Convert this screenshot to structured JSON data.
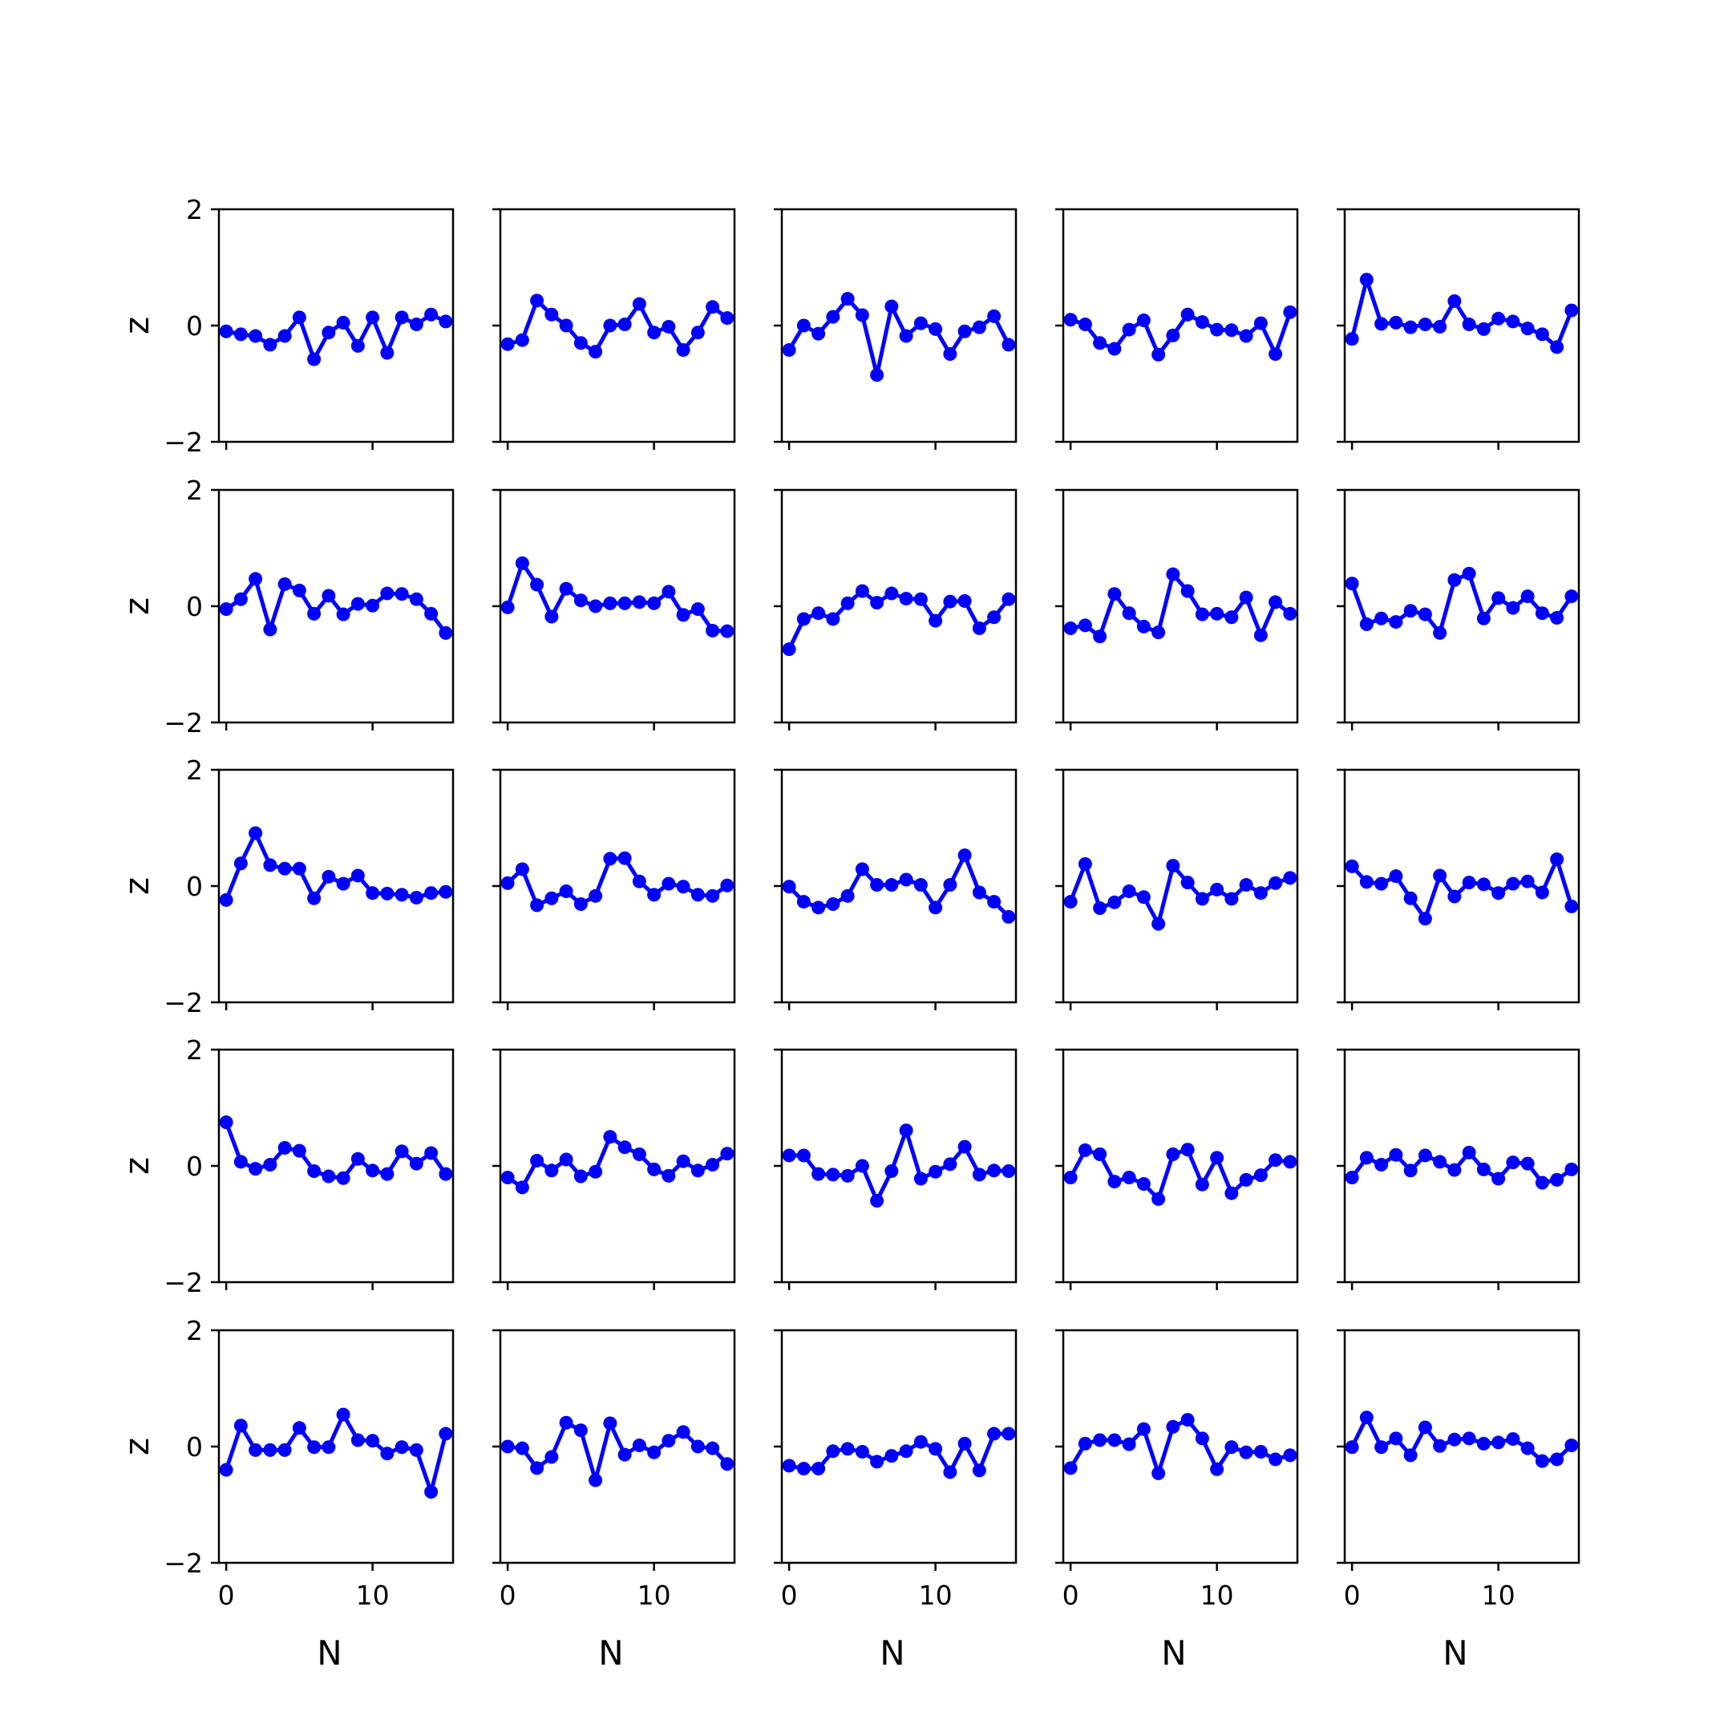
{
  "chart_data": {
    "type": "line",
    "layout": {
      "rows": 5,
      "cols": 5
    },
    "x": [
      0,
      1,
      2,
      3,
      4,
      5,
      6,
      7,
      8,
      9,
      10,
      11,
      12,
      13,
      14,
      15
    ],
    "xlim": [
      -0.5,
      15.5
    ],
    "ylim": [
      -2,
      2
    ],
    "xticks": [
      0,
      10
    ],
    "yticks": [
      -2,
      0,
      2
    ],
    "xlabel": "N",
    "ylabel": "z",
    "line_color": "#0000ff",
    "marker": "circle",
    "panels": [
      [
        -0.1,
        -0.15,
        -0.18,
        -0.33,
        -0.18,
        0.14,
        -0.58,
        -0.12,
        0.05,
        -0.35,
        0.14,
        -0.47,
        0.14,
        0.02,
        0.19,
        0.07
      ],
      [
        -0.32,
        -0.25,
        0.43,
        0.19,
        0.0,
        -0.3,
        -0.45,
        0.0,
        0.02,
        0.37,
        -0.12,
        -0.02,
        -0.42,
        -0.12,
        0.32,
        0.13
      ],
      [
        -0.42,
        0.0,
        -0.14,
        0.15,
        0.46,
        0.18,
        -0.85,
        0.33,
        -0.18,
        0.04,
        -0.06,
        -0.49,
        -0.1,
        -0.03,
        0.16,
        -0.33
      ],
      [
        0.1,
        0.02,
        -0.3,
        -0.4,
        -0.07,
        0.09,
        -0.5,
        -0.17,
        0.19,
        0.06,
        -0.07,
        -0.08,
        -0.18,
        0.04,
        -0.49,
        0.23
      ],
      [
        -0.23,
        0.79,
        0.03,
        0.05,
        -0.03,
        0.02,
        -0.02,
        0.42,
        0.02,
        -0.06,
        0.12,
        0.07,
        -0.05,
        -0.15,
        -0.37,
        0.26
      ],
      [
        -0.05,
        0.12,
        0.47,
        -0.4,
        0.38,
        0.27,
        -0.13,
        0.18,
        -0.14,
        0.04,
        0.01,
        0.22,
        0.21,
        0.12,
        -0.13,
        -0.46
      ],
      [
        -0.02,
        0.74,
        0.37,
        -0.18,
        0.3,
        0.1,
        0.0,
        0.05,
        0.05,
        0.07,
        0.05,
        0.25,
        -0.15,
        -0.05,
        -0.42,
        -0.43
      ],
      [
        -0.74,
        -0.22,
        -0.12,
        -0.22,
        0.05,
        0.26,
        0.06,
        0.22,
        0.13,
        0.12,
        -0.25,
        0.08,
        0.09,
        -0.38,
        -0.19,
        0.12
      ],
      [
        -0.38,
        -0.33,
        -0.52,
        0.21,
        -0.12,
        -0.35,
        -0.45,
        0.55,
        0.26,
        -0.14,
        -0.13,
        -0.19,
        0.15,
        -0.5,
        0.07,
        -0.13
      ],
      [
        0.39,
        -0.31,
        -0.21,
        -0.27,
        -0.08,
        -0.14,
        -0.46,
        0.45,
        0.56,
        -0.21,
        0.14,
        -0.03,
        0.17,
        -0.12,
        -0.2,
        0.17
      ],
      [
        -0.24,
        0.39,
        0.91,
        0.36,
        0.3,
        0.3,
        -0.21,
        0.16,
        0.04,
        0.18,
        -0.12,
        -0.13,
        -0.15,
        -0.2,
        -0.12,
        -0.1
      ],
      [
        0.05,
        0.29,
        -0.33,
        -0.21,
        -0.09,
        -0.31,
        -0.17,
        0.47,
        0.48,
        0.08,
        -0.15,
        0.04,
        -0.01,
        -0.15,
        -0.17,
        0.01
      ],
      [
        -0.01,
        -0.27,
        -0.37,
        -0.31,
        -0.17,
        0.29,
        0.02,
        0.02,
        0.11,
        0.02,
        -0.37,
        0.02,
        0.53,
        -0.11,
        -0.27,
        -0.53
      ],
      [
        -0.27,
        0.38,
        -0.38,
        -0.28,
        -0.09,
        -0.19,
        -0.65,
        0.35,
        0.06,
        -0.22,
        -0.06,
        -0.22,
        0.02,
        -0.12,
        0.05,
        0.14
      ],
      [
        0.34,
        0.07,
        0.04,
        0.17,
        -0.21,
        -0.56,
        0.18,
        -0.18,
        0.06,
        0.03,
        -0.12,
        0.04,
        0.08,
        -0.11,
        0.46,
        -0.35
      ],
      [
        0.75,
        0.07,
        -0.05,
        0.02,
        0.31,
        0.26,
        -0.09,
        -0.18,
        -0.21,
        0.12,
        -0.08,
        -0.14,
        0.25,
        0.04,
        0.22,
        -0.14
      ],
      [
        -0.2,
        -0.37,
        0.09,
        -0.08,
        0.11,
        -0.18,
        -0.1,
        0.5,
        0.32,
        0.2,
        -0.06,
        -0.17,
        0.08,
        -0.08,
        0.02,
        0.21
      ],
      [
        0.18,
        0.18,
        -0.14,
        -0.15,
        -0.17,
        0.0,
        -0.6,
        -0.09,
        0.61,
        -0.22,
        -0.1,
        0.03,
        0.33,
        -0.15,
        -0.08,
        -0.09
      ],
      [
        -0.2,
        0.27,
        0.2,
        -0.27,
        -0.2,
        -0.31,
        -0.57,
        0.2,
        0.28,
        -0.32,
        0.14,
        -0.47,
        -0.24,
        -0.16,
        0.1,
        0.07
      ],
      [
        -0.2,
        0.14,
        0.02,
        0.19,
        -0.08,
        0.18,
        0.07,
        -0.07,
        0.23,
        -0.06,
        -0.22,
        0.06,
        0.04,
        -0.29,
        -0.24,
        -0.06
      ],
      [
        -0.4,
        0.36,
        -0.06,
        -0.06,
        -0.06,
        0.32,
        -0.01,
        -0.01,
        0.55,
        0.11,
        0.1,
        -0.12,
        -0.01,
        -0.06,
        -0.78,
        0.22
      ],
      [
        0.0,
        -0.03,
        -0.37,
        -0.18,
        0.41,
        0.28,
        -0.58,
        0.4,
        -0.14,
        0.02,
        -0.1,
        0.1,
        0.25,
        0.0,
        -0.03,
        -0.3
      ],
      [
        -0.33,
        -0.38,
        -0.38,
        -0.08,
        -0.04,
        -0.09,
        -0.26,
        -0.16,
        -0.08,
        0.08,
        -0.04,
        -0.44,
        0.05,
        -0.41,
        0.22,
        0.22
      ],
      [
        -0.37,
        0.05,
        0.11,
        0.11,
        0.04,
        0.3,
        -0.46,
        0.34,
        0.46,
        0.14,
        -0.39,
        -0.01,
        -0.1,
        -0.09,
        -0.22,
        -0.15
      ],
      [
        -0.01,
        0.5,
        -0.01,
        0.14,
        -0.15,
        0.33,
        0.01,
        0.12,
        0.14,
        0.05,
        0.07,
        0.13,
        -0.03,
        -0.25,
        -0.22,
        0.02
      ]
    ]
  }
}
